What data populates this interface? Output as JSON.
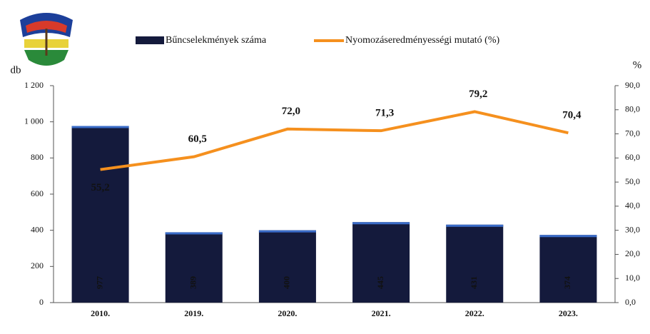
{
  "chart_data": {
    "type": "combo",
    "categories": [
      "2010.",
      "2019.",
      "2020.",
      "2021.",
      "2022.",
      "2023."
    ],
    "series": [
      {
        "name": "Bűncselekmények száma",
        "type": "bar",
        "color": "#141a3c",
        "values": [
          977,
          389,
          400,
          445,
          431,
          374
        ]
      },
      {
        "name": "Nyomozáseredményességi mutató (%)",
        "type": "line",
        "axis": "y2",
        "color": "#f5901e",
        "values": [
          55.2,
          60.5,
          72.0,
          71.3,
          79.2,
          70.4
        ],
        "value_labels": [
          "55,2",
          "60,5",
          "72,0",
          "71,3",
          "79,2",
          "70,4"
        ]
      }
    ],
    "y_label": "db",
    "y2_label": "%",
    "ylim": [
      0,
      1200
    ],
    "yticks": [
      0,
      200,
      400,
      600,
      800,
      {
        "value": 1000,
        "label": "1 000"
      },
      {
        "value": 1200,
        "label": "1 200"
      }
    ],
    "y2lim": [
      0,
      90
    ],
    "y2ticks": [
      {
        "value": 0,
        "label": "0,0"
      },
      {
        "value": 10,
        "label": "10,0"
      },
      {
        "value": 20,
        "label": "20,0"
      },
      {
        "value": 30,
        "label": "30,0"
      },
      {
        "value": 40,
        "label": "40,0"
      },
      {
        "value": 50,
        "label": "50,0"
      },
      {
        "value": 60,
        "label": "60,0"
      },
      {
        "value": 70,
        "label": "70,0"
      },
      {
        "value": 80,
        "label": "80,0"
      },
      {
        "value": 90,
        "label": "90,0"
      }
    ],
    "grid": false,
    "legend": "top"
  }
}
